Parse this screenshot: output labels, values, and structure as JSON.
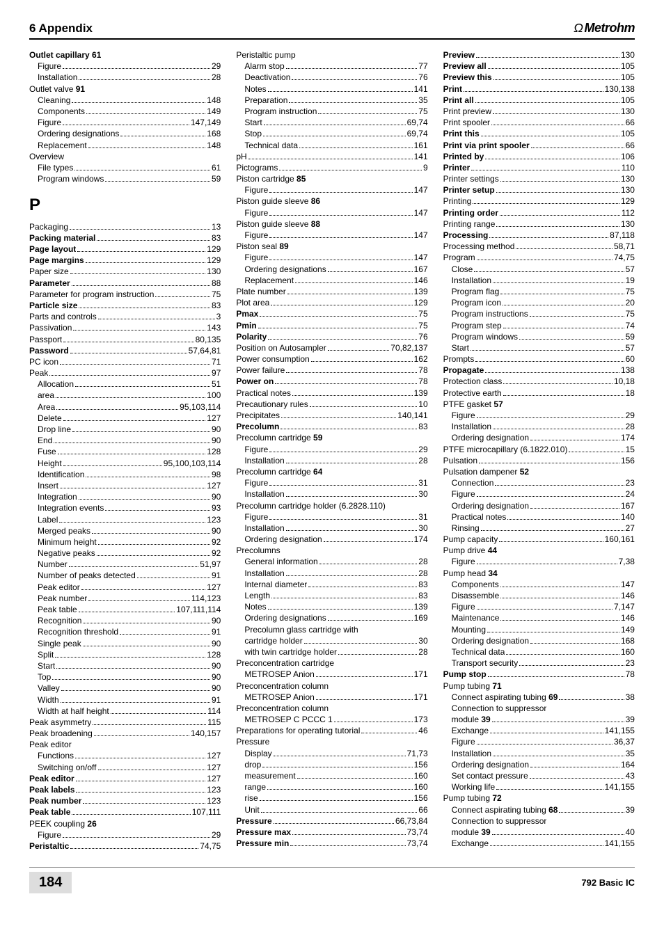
{
  "header": {
    "left": "6  Appendix",
    "brand_symbol": "Ω",
    "brand_text": "Metrohm"
  },
  "footer": {
    "page": "184",
    "product": "792 Basic IC"
  },
  "section_letter": "P",
  "col1": [
    {
      "t": "Outlet capillary ",
      "b": true,
      "suffix": "61",
      "nopage": true
    },
    {
      "t": "Figure",
      "p": "29",
      "sub": true
    },
    {
      "t": "Installation",
      "p": "28",
      "sub": true
    },
    {
      "t": "Outlet valve ",
      "b": false,
      "suffix_b": "91",
      "nopage": true
    },
    {
      "t": "Cleaning",
      "p": "148",
      "sub": true
    },
    {
      "t": "Components",
      "p": "149",
      "sub": true
    },
    {
      "t": "Figure",
      "p": "147,149",
      "sub": true
    },
    {
      "t": "Ordering designations",
      "p": "168",
      "sub": true
    },
    {
      "t": "Replacement",
      "p": "148",
      "sub": true
    },
    {
      "t": "Overview",
      "nopage": true
    },
    {
      "t": "File types",
      "p": "61",
      "sub": true
    },
    {
      "t": "Program windows",
      "p": "59",
      "sub": true
    },
    {
      "letter": "P"
    },
    {
      "t": "Packaging",
      "p": "13"
    },
    {
      "t": "Packing material",
      "b": true,
      "p": "83"
    },
    {
      "t": "Page layout",
      "b": true,
      "p": "129"
    },
    {
      "t": "Page margins",
      "b": true,
      "p": "129"
    },
    {
      "t": "Paper size",
      "p": "130"
    },
    {
      "t": "Parameter",
      "b": true,
      "p": "88"
    },
    {
      "t": "Parameter for program instruction",
      "p": "75"
    },
    {
      "t": "Particle size",
      "b": true,
      "p": "83"
    },
    {
      "t": "Parts and controls",
      "p": "3"
    },
    {
      "t": "Passivation",
      "p": "143"
    },
    {
      "t": "Passport",
      "p": "80,135"
    },
    {
      "t": "Password",
      "b": true,
      "p": "57,64,81"
    },
    {
      "t": "PC icon",
      "p": "71"
    },
    {
      "t": "Peak",
      "p": "97"
    },
    {
      "t": "Allocation",
      "p": "51",
      "sub": true
    },
    {
      "t": "area",
      "p": "100",
      "sub": true
    },
    {
      "t": "Area",
      "p": "95,103,114",
      "sub": true
    },
    {
      "t": "Delete",
      "p": "127",
      "sub": true
    },
    {
      "t": "Drop line",
      "p": "90",
      "sub": true
    },
    {
      "t": "End",
      "p": "90",
      "sub": true
    },
    {
      "t": "Fuse",
      "p": "128",
      "sub": true
    },
    {
      "t": "Height",
      "p": "95,100,103,114",
      "sub": true
    },
    {
      "t": "Identification",
      "p": "98",
      "sub": true
    },
    {
      "t": "Insert",
      "p": "127",
      "sub": true
    },
    {
      "t": "Integration",
      "p": "90",
      "sub": true
    },
    {
      "t": "Integration events",
      "p": "93",
      "sub": true
    },
    {
      "t": "Label",
      "p": "123",
      "sub": true
    },
    {
      "t": "Merged peaks",
      "p": "90",
      "sub": true
    },
    {
      "t": "Minimum height",
      "p": "92",
      "sub": true
    },
    {
      "t": "Negative peaks",
      "p": "92",
      "sub": true
    },
    {
      "t": "Number",
      "p": "51,97",
      "sub": true
    },
    {
      "t": "Number of peaks detected",
      "p": "91",
      "sub": true
    },
    {
      "t": "Peak editor",
      "p": "127",
      "sub": true
    },
    {
      "t": "Peak number",
      "p": "114,123",
      "sub": true
    },
    {
      "t": "Peak table",
      "p": "107,111,114",
      "sub": true
    },
    {
      "t": "Recognition",
      "p": "90",
      "sub": true
    },
    {
      "t": "Recognition threshold",
      "p": "91",
      "sub": true
    },
    {
      "t": "Single peak",
      "p": "90",
      "sub": true
    },
    {
      "t": "Split",
      "p": "128",
      "sub": true
    },
    {
      "t": "Start",
      "p": "90",
      "sub": true
    },
    {
      "t": "Top",
      "p": "90",
      "sub": true
    },
    {
      "t": "Valley",
      "p": "90",
      "sub": true
    },
    {
      "t": "Width",
      "p": "91",
      "sub": true
    },
    {
      "t": "Width at half height",
      "p": "114",
      "sub": true
    },
    {
      "t": "Peak asymmetry",
      "p": "115"
    },
    {
      "t": "Peak broadening",
      "p": "140,157"
    },
    {
      "t": "Peak editor",
      "nopage": true
    },
    {
      "t": "Functions",
      "p": "127",
      "sub": true
    },
    {
      "t": "Switching on/off",
      "p": "127",
      "sub": true
    },
    {
      "t": "Peak editor",
      "b": true,
      "p": "127"
    },
    {
      "t": "Peak labels",
      "b": true,
      "p": "123"
    },
    {
      "t": "Peak number",
      "b": true,
      "p": "123"
    },
    {
      "t": "Peak table",
      "b": true,
      "p": "107,111"
    },
    {
      "t": "PEEK coupling ",
      "suffix_b": "26",
      "nopage": true
    },
    {
      "t": "Figure",
      "p": "29",
      "sub": true
    },
    {
      "t": "Peristaltic",
      "b": true,
      "p": "74,75"
    }
  ],
  "col2": [
    {
      "t": "Peristaltic pump",
      "nopage": true
    },
    {
      "t": "Alarm stop",
      "p": "77",
      "sub": true
    },
    {
      "t": "Deactivation",
      "p": "76",
      "sub": true
    },
    {
      "t": "Notes",
      "p": "141",
      "sub": true
    },
    {
      "t": "Preparation",
      "p": "35",
      "sub": true
    },
    {
      "t": "Program instruction",
      "p": "75",
      "sub": true
    },
    {
      "t": "Start",
      "p": "69,74",
      "sub": true
    },
    {
      "t": "Stop",
      "p": "69,74",
      "sub": true
    },
    {
      "t": "Technical data",
      "p": "161",
      "sub": true
    },
    {
      "t": "pH",
      "p": "141"
    },
    {
      "t": "Pictograms",
      "p": "9"
    },
    {
      "t": "Piston cartridge ",
      "suffix_b": "85",
      "nopage": true
    },
    {
      "t": "Figure",
      "p": "147",
      "sub": true
    },
    {
      "t": "Piston guide sleeve ",
      "suffix_b": "86",
      "nopage": true
    },
    {
      "t": "Figure",
      "p": "147",
      "sub": true
    },
    {
      "t": "Piston guide sleeve ",
      "suffix_b": "88",
      "nopage": true
    },
    {
      "t": "Figure",
      "p": "147",
      "sub": true
    },
    {
      "t": "Piston seal ",
      "suffix_b": "89",
      "nopage": true
    },
    {
      "t": "Figure",
      "p": "147",
      "sub": true
    },
    {
      "t": "Ordering designations",
      "p": "167",
      "sub": true
    },
    {
      "t": "Replacement",
      "p": "146",
      "sub": true
    },
    {
      "t": "Plate number",
      "p": "139"
    },
    {
      "t": "Plot area",
      "p": "129"
    },
    {
      "t": "Pmax",
      "b": true,
      "p": "75"
    },
    {
      "t": "Pmin",
      "b": true,
      "p": "75"
    },
    {
      "t": "Polarity",
      "b": true,
      "p": "76"
    },
    {
      "t": "Position on Autosampler",
      "p": "70,82,137"
    },
    {
      "t": "Power consumption",
      "p": "162"
    },
    {
      "t": "Power failure",
      "p": "78"
    },
    {
      "t": "Power on",
      "b": true,
      "p": "78"
    },
    {
      "t": "Practical notes",
      "p": "139"
    },
    {
      "t": "Precautionary rules",
      "p": "10"
    },
    {
      "t": "Precipitates",
      "p": "140,141"
    },
    {
      "t": "Precolumn",
      "b": true,
      "p": "83"
    },
    {
      "t": "Precolumn cartridge ",
      "suffix_b": "59",
      "nopage": true
    },
    {
      "t": "Figure",
      "p": "29",
      "sub": true
    },
    {
      "t": "Installation",
      "p": "28",
      "sub": true
    },
    {
      "t": "Precolumn cartridge ",
      "suffix_b": "64",
      "nopage": true
    },
    {
      "t": "Figure",
      "p": "31",
      "sub": true
    },
    {
      "t": "Installation",
      "p": "30",
      "sub": true
    },
    {
      "t": "Precolumn cartridge holder (6.2828.110)",
      "nopage": true
    },
    {
      "t": "Figure",
      "p": "31",
      "sub": true
    },
    {
      "t": "Installation",
      "p": "30",
      "sub": true
    },
    {
      "t": "Ordering designation",
      "p": "174",
      "sub": true
    },
    {
      "t": "Precolumns",
      "nopage": true
    },
    {
      "t": "General information",
      "p": "28",
      "sub": true
    },
    {
      "t": "Installation",
      "p": "28",
      "sub": true
    },
    {
      "t": "Internal diameter",
      "p": "83",
      "sub": true
    },
    {
      "t": "Length",
      "p": "83",
      "sub": true
    },
    {
      "t": "Notes",
      "p": "139",
      "sub": true
    },
    {
      "t": "Ordering designations",
      "p": "169",
      "sub": true
    },
    {
      "t": "Precolumn glass cartridge with",
      "nopage": true,
      "sub": true
    },
    {
      "t": "cartridge holder",
      "p": "30",
      "sub": true
    },
    {
      "t": "with twin cartridge holder",
      "p": "28",
      "sub": true
    },
    {
      "t": "Preconcentration cartridge",
      "nopage": true
    },
    {
      "t": "METROSEP Anion",
      "p": "171",
      "sub": true
    },
    {
      "t": "Preconcentration column",
      "nopage": true
    },
    {
      "t": "METROSEP Anion",
      "p": "171",
      "sub": true
    },
    {
      "t": "Preconcentration column",
      "nopage": true
    },
    {
      "t": "METROSEP C PCCC 1",
      "p": "173",
      "sub": true
    },
    {
      "t": "Preparations for operating tutorial",
      "p": "46"
    },
    {
      "t": "Pressure",
      "nopage": true
    },
    {
      "t": "Display",
      "p": "71,73",
      "sub": true
    },
    {
      "t": "drop",
      "p": "156",
      "sub": true
    },
    {
      "t": "measurement",
      "p": "160",
      "sub": true
    },
    {
      "t": "range",
      "p": "160",
      "sub": true
    },
    {
      "t": "rise",
      "p": "156",
      "sub": true
    },
    {
      "t": "Unit",
      "p": "66",
      "sub": true
    },
    {
      "t": "Pressure",
      "b": true,
      "p": "66,73,84"
    },
    {
      "t": "Pressure max",
      "b": true,
      "p": "73,74"
    },
    {
      "t": "Pressure min",
      "b": true,
      "p": "73,74"
    }
  ],
  "col3": [
    {
      "t": "Preview",
      "b": true,
      "p": "130"
    },
    {
      "t": "Preview all",
      "b": true,
      "p": "105"
    },
    {
      "t": "Preview this",
      "b": true,
      "p": "105"
    },
    {
      "t": "Print",
      "b": true,
      "p": "130,138"
    },
    {
      "t": "Print all",
      "b": true,
      "p": "105"
    },
    {
      "t": "Print preview",
      "p": "130"
    },
    {
      "t": "Print spooler",
      "p": "66"
    },
    {
      "t": "Print this",
      "b": true,
      "p": "105"
    },
    {
      "t": "Print via print spooler",
      "b": true,
      "p": "66"
    },
    {
      "t": "Printed by",
      "b": true,
      "p": "106"
    },
    {
      "t": "Printer",
      "b": true,
      "p": "110"
    },
    {
      "t": "Printer settings",
      "p": "130"
    },
    {
      "t": "Printer setup",
      "b": true,
      "p": "130"
    },
    {
      "t": "Printing",
      "p": "129"
    },
    {
      "t": "Printing order",
      "b": true,
      "p": "112"
    },
    {
      "t": "Printing range",
      "p": "130"
    },
    {
      "t": "Processing",
      "b": true,
      "p": "87,118"
    },
    {
      "t": "Processing method",
      "p": "58,71"
    },
    {
      "t": "Program",
      "p": "74,75"
    },
    {
      "t": "Close",
      "p": "57",
      "sub": true
    },
    {
      "t": "Installation",
      "p": "19",
      "sub": true
    },
    {
      "t": "Program flag",
      "p": "75",
      "sub": true
    },
    {
      "t": "Program icon",
      "p": "20",
      "sub": true
    },
    {
      "t": "Program instructions",
      "p": "75",
      "sub": true
    },
    {
      "t": "Program step",
      "p": "74",
      "sub": true
    },
    {
      "t": "Program windows",
      "p": "59",
      "sub": true
    },
    {
      "t": "Start",
      "p": "57",
      "sub": true
    },
    {
      "t": "Prompts",
      "p": "60"
    },
    {
      "t": "Propagate",
      "b": true,
      "p": "138"
    },
    {
      "t": "Protection class",
      "p": "10,18"
    },
    {
      "t": "Protective earth",
      "p": "18"
    },
    {
      "t": "PTFE gasket ",
      "suffix_b": "57",
      "nopage": true
    },
    {
      "t": "Figure",
      "p": "29",
      "sub": true
    },
    {
      "t": "Installation",
      "p": "28",
      "sub": true
    },
    {
      "t": "Ordering designation",
      "p": "174",
      "sub": true
    },
    {
      "t": "PTFE microcapillary (6.1822.010)",
      "p": "15"
    },
    {
      "t": "Pulsation",
      "p": "156"
    },
    {
      "t": "Pulsation dampener ",
      "suffix_b": "52",
      "nopage": true
    },
    {
      "t": "Connection",
      "p": "23",
      "sub": true
    },
    {
      "t": "Figure",
      "p": "24",
      "sub": true
    },
    {
      "t": "Ordering designation",
      "p": "167",
      "sub": true
    },
    {
      "t": "Practical notes",
      "p": "140",
      "sub": true
    },
    {
      "t": "Rinsing",
      "p": "27",
      "sub": true
    },
    {
      "t": "Pump capacity",
      "p": "160,161"
    },
    {
      "t": "Pump drive ",
      "suffix_b": "44",
      "nopage": true
    },
    {
      "t": "Figure",
      "p": "7,38",
      "sub": true
    },
    {
      "t": "Pump head ",
      "suffix_b": "34",
      "nopage": true
    },
    {
      "t": "Components",
      "p": "147",
      "sub": true
    },
    {
      "t": "Disassemble",
      "p": "146",
      "sub": true
    },
    {
      "t": "Figure",
      "p": "7,147",
      "sub": true
    },
    {
      "t": "Maintenance",
      "p": "146",
      "sub": true
    },
    {
      "t": "Mounting",
      "p": "149",
      "sub": true
    },
    {
      "t": "Ordering designation",
      "p": "168",
      "sub": true
    },
    {
      "t": "Technical data",
      "p": "160",
      "sub": true
    },
    {
      "t": "Transport security",
      "p": "23",
      "sub": true
    },
    {
      "t": "Pump stop",
      "b": true,
      "p": "78"
    },
    {
      "t": "Pump tubing ",
      "suffix_b": "71",
      "nopage": true
    },
    {
      "t": "Connect aspirating tubing ",
      "suffix_b": "69",
      "p": "38",
      "sub": true
    },
    {
      "t": "Connection to suppressor",
      "nopage": true,
      "sub": true
    },
    {
      "t": "module ",
      "suffix_b": "39",
      "p": "39",
      "sub": true
    },
    {
      "t": "Exchange",
      "p": "141,155",
      "sub": true
    },
    {
      "t": "Figure",
      "p": "36,37",
      "sub": true
    },
    {
      "t": "Installation",
      "p": "35",
      "sub": true
    },
    {
      "t": "Ordering designation",
      "p": "164",
      "sub": true
    },
    {
      "t": "Set contact pressure",
      "p": "43",
      "sub": true
    },
    {
      "t": "Working life",
      "p": "141,155",
      "sub": true
    },
    {
      "t": "Pump tubing ",
      "suffix_b": "72",
      "nopage": true
    },
    {
      "t": "Connect aspirating tubing ",
      "suffix_b": "68",
      "p": "39",
      "sub": true
    },
    {
      "t": "Connection to suppressor",
      "nopage": true,
      "sub": true
    },
    {
      "t": "module ",
      "suffix_b": "39",
      "p": "40",
      "sub": true
    },
    {
      "t": "Exchange",
      "p": "141,155",
      "sub": true
    }
  ]
}
